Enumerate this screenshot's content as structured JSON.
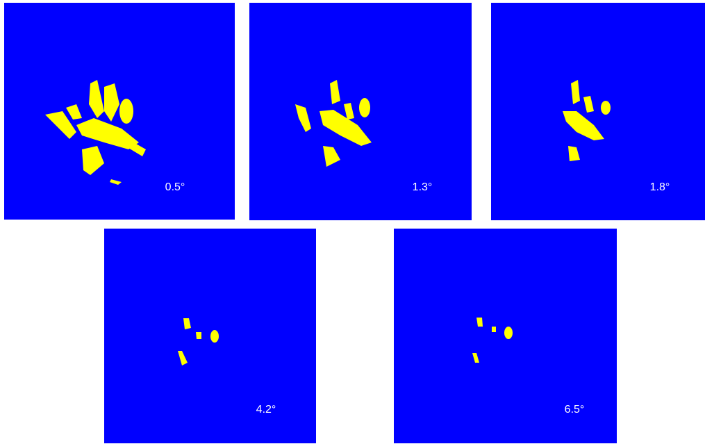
{
  "panels": [
    {
      "label": "0.5°"
    },
    {
      "label": "1.3°"
    },
    {
      "label": "1.8°"
    },
    {
      "label": "4.2°"
    },
    {
      "label": "6.5°"
    }
  ]
}
